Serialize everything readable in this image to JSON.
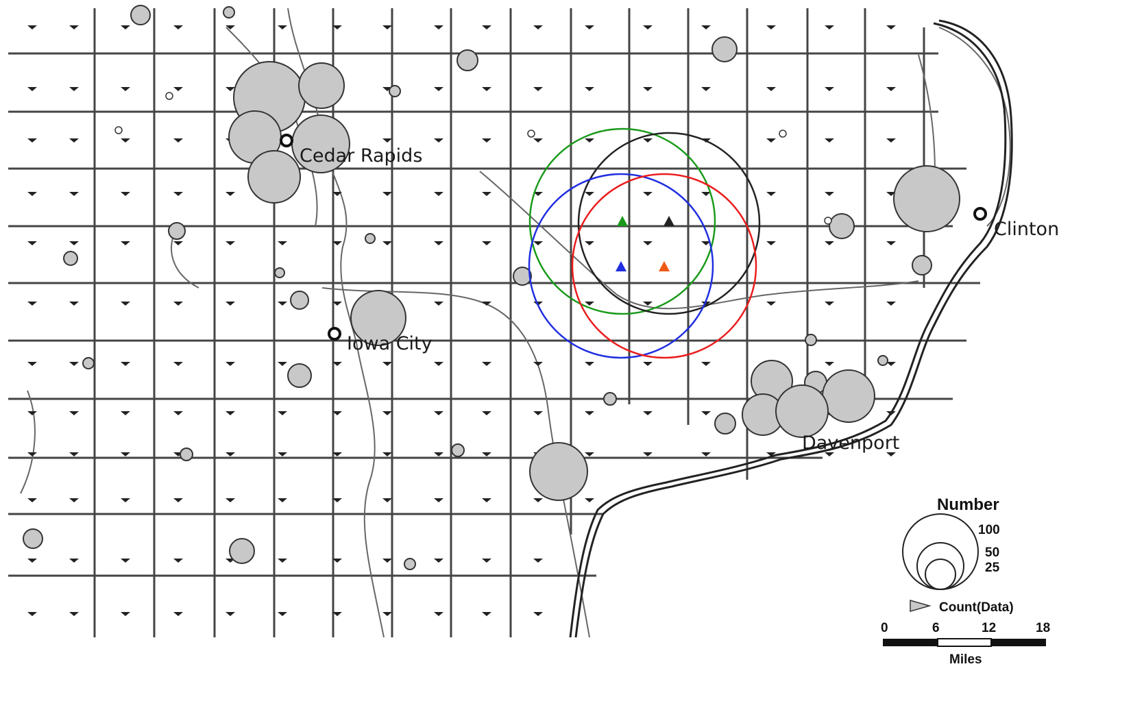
{
  "colors": {
    "symbol_fill": "#c8c8c8",
    "symbol_stroke": "#333333",
    "boundary": "#444444",
    "green": "#1a9a1a",
    "blue": "#1f2ee0",
    "red": "#ea1c1c",
    "black": "#222222",
    "orange": "#f05a14"
  },
  "cities": {
    "cedar_rapids": "Cedar Rapids",
    "iowa_city": "Iowa City",
    "davenport": "Davenport",
    "clinton": "Clinton"
  },
  "legend": {
    "title": "Number",
    "size_labels": [
      "100",
      "50",
      "25"
    ],
    "count_label": "Count(Data)",
    "scale_ticks": [
      "0",
      "6",
      "12",
      "18"
    ],
    "scale_unit": "Miles"
  }
}
